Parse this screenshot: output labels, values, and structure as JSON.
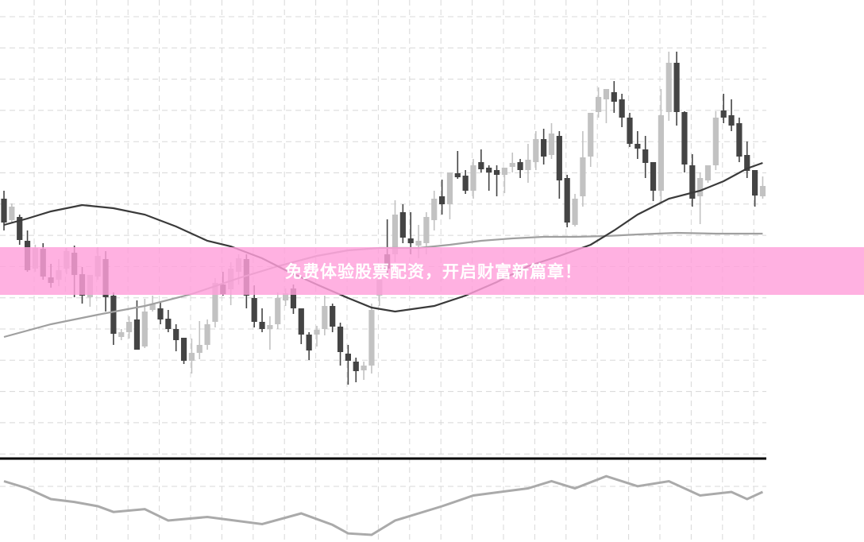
{
  "banner": {
    "text": "免费体验股票配资，开启财富新篇章！",
    "color": "#ffa0da"
  },
  "chart_data": {
    "type": "candlestick",
    "title": "",
    "grid": true,
    "colors": {
      "bearish": "#444444",
      "bullish": "#c2c2c2",
      "ma_fast": "#3a3a3a",
      "ma_slow": "#a0a0a0",
      "oscillator": "#aaaaaa",
      "separator": "#000000"
    },
    "ohlc_fields": [
      "open",
      "high",
      "low",
      "close"
    ],
    "candles": [
      [
        350,
        360,
        310,
        320
      ],
      [
        323,
        344,
        320,
        340
      ],
      [
        327,
        330,
        292,
        298
      ],
      [
        297,
        310,
        258,
        260
      ],
      [
        262,
        292,
        258,
        288
      ],
      [
        287,
        294,
        248,
        252
      ],
      [
        251,
        268,
        238,
        244
      ],
      [
        248,
        274,
        240,
        260
      ],
      [
        262,
        288,
        255,
        284
      ],
      [
        282,
        291,
        226,
        254
      ],
      [
        255,
        264,
        218,
        228
      ],
      [
        226,
        254,
        214,
        254
      ],
      [
        252,
        289,
        248,
        278
      ],
      [
        274,
        284,
        208,
        226
      ],
      [
        228,
        232,
        166,
        180
      ],
      [
        176,
        186,
        172,
        182
      ],
      [
        182,
        202,
        174,
        195
      ],
      [
        198,
        222,
        160,
        160
      ],
      [
        164,
        224,
        162,
        208
      ],
      [
        210,
        228,
        208,
        218
      ],
      [
        212,
        220,
        192,
        198
      ],
      [
        199,
        210,
        182,
        186
      ],
      [
        186,
        192,
        158,
        172
      ],
      [
        175,
        175,
        142,
        146
      ],
      [
        146,
        174,
        130,
        156
      ],
      [
        156,
        196,
        148,
        166
      ],
      [
        166,
        198,
        160,
        192
      ],
      [
        195,
        250,
        188,
        244
      ],
      [
        242,
        258,
        228,
        230
      ],
      [
        236,
        270,
        216,
        262
      ],
      [
        258,
        280,
        242,
        275
      ],
      [
        274,
        280,
        212,
        228
      ],
      [
        225,
        241,
        188,
        195
      ],
      [
        195,
        212,
        182,
        186
      ],
      [
        186,
        202,
        160,
        191
      ],
      [
        192,
        232,
        186,
        225
      ],
      [
        222,
        237,
        215,
        231
      ],
      [
        237,
        242,
        205,
        212
      ],
      [
        212,
        212,
        167,
        179
      ],
      [
        179,
        182,
        147,
        159
      ],
      [
        179,
        190,
        164,
        185
      ],
      [
        186,
        228,
        178,
        215
      ],
      [
        215,
        218,
        182,
        189
      ],
      [
        189,
        194,
        140,
        157
      ],
      [
        155,
        166,
        116,
        146
      ],
      [
        145,
        150,
        119,
        133
      ],
      [
        134,
        145,
        122,
        140
      ],
      [
        140,
        218,
        130,
        210
      ],
      [
        228,
        258,
        215,
        248
      ],
      [
        280,
        324,
        255,
        262
      ],
      [
        280,
        348,
        270,
        330
      ],
      [
        333,
        343,
        294,
        301
      ],
      [
        300,
        333,
        280,
        294
      ],
      [
        291,
        317,
        275,
        297
      ],
      [
        294,
        333,
        280,
        327
      ],
      [
        323,
        360,
        310,
        350
      ],
      [
        353,
        374,
        330,
        343
      ],
      [
        343,
        383,
        324,
        383
      ],
      [
        382,
        410,
        375,
        377
      ],
      [
        379,
        386,
        356,
        360
      ],
      [
        360,
        400,
        350,
        392
      ],
      [
        396,
        412,
        383,
        387
      ],
      [
        389,
        392,
        360,
        383
      ],
      [
        386,
        392,
        353,
        380
      ],
      [
        380,
        389,
        357,
        389
      ],
      [
        390,
        408,
        383,
        395
      ],
      [
        396,
        400,
        376,
        386
      ],
      [
        386,
        419,
        370,
        399
      ],
      [
        396,
        435,
        386,
        425
      ],
      [
        425,
        438,
        393,
        403
      ],
      [
        405,
        445,
        400,
        432
      ],
      [
        429,
        435,
        350,
        373
      ],
      [
        376,
        380,
        314,
        320
      ],
      [
        317,
        356,
        315,
        350
      ],
      [
        353,
        435,
        340,
        402
      ],
      [
        403,
        458,
        390,
        458
      ],
      [
        459,
        490,
        452,
        478
      ],
      [
        475,
        488,
        445,
        488
      ],
      [
        484,
        498,
        458,
        472
      ],
      [
        475,
        482,
        440,
        452
      ],
      [
        452,
        458,
        415,
        419
      ],
      [
        419,
        435,
        400,
        413
      ],
      [
        412,
        429,
        376,
        395
      ],
      [
        396,
        396,
        347,
        360
      ],
      [
        360,
        488,
        344,
        455
      ],
      [
        459,
        535,
        448,
        521
      ],
      [
        521,
        535,
        442,
        459
      ],
      [
        459,
        460,
        383,
        393
      ],
      [
        392,
        406,
        340,
        350
      ],
      [
        353,
        383,
        318,
        376
      ],
      [
        373,
        392,
        370,
        392
      ],
      [
        392,
        460,
        386,
        452
      ],
      [
        461,
        482,
        445,
        452
      ],
      [
        455,
        475,
        435,
        442
      ],
      [
        445,
        452,
        396,
        403
      ],
      [
        405,
        422,
        376,
        385
      ],
      [
        386,
        386,
        340,
        354
      ],
      [
        353,
        378,
        350,
        366
      ]
    ],
    "ma_fast": {
      "index": [
        0,
        3,
        6,
        10,
        14,
        18,
        22,
        26,
        29,
        33,
        36,
        40,
        44,
        47,
        50,
        55,
        59,
        63,
        67,
        71,
        75,
        78,
        81,
        85,
        89,
        92,
        95,
        97
      ],
      "values": [
        317,
        325,
        334,
        342,
        338,
        330,
        315,
        297,
        290,
        275,
        260,
        242,
        225,
        213,
        208,
        215,
        228,
        245,
        265,
        278,
        292,
        310,
        330,
        350,
        360,
        372,
        388,
        395
      ]
    },
    "ma_slow": {
      "index": [
        0,
        6,
        12,
        18,
        24,
        30,
        35,
        40,
        44,
        48,
        53,
        57,
        61,
        65,
        69,
        73,
        77,
        81,
        86,
        91,
        97
      ],
      "values": [
        176,
        192,
        204,
        215,
        230,
        250,
        265,
        278,
        285,
        288,
        288,
        292,
        297,
        300,
        302,
        302,
        303,
        305,
        307,
        306,
        306
      ]
    },
    "oscillator": {
      "index": [
        0,
        3,
        6,
        9,
        12,
        14,
        18,
        21,
        26,
        33,
        38,
        42,
        44,
        47,
        50,
        56,
        60,
        67,
        70,
        73,
        77,
        81,
        85,
        89,
        93,
        95,
        97
      ],
      "values": [
        85,
        75,
        60,
        56,
        50,
        42,
        46,
        30,
        35,
        25,
        40,
        24,
        12,
        10,
        30,
        50,
        65,
        75,
        85,
        75,
        92,
        78,
        85,
        65,
        70,
        60,
        70
      ]
    }
  }
}
